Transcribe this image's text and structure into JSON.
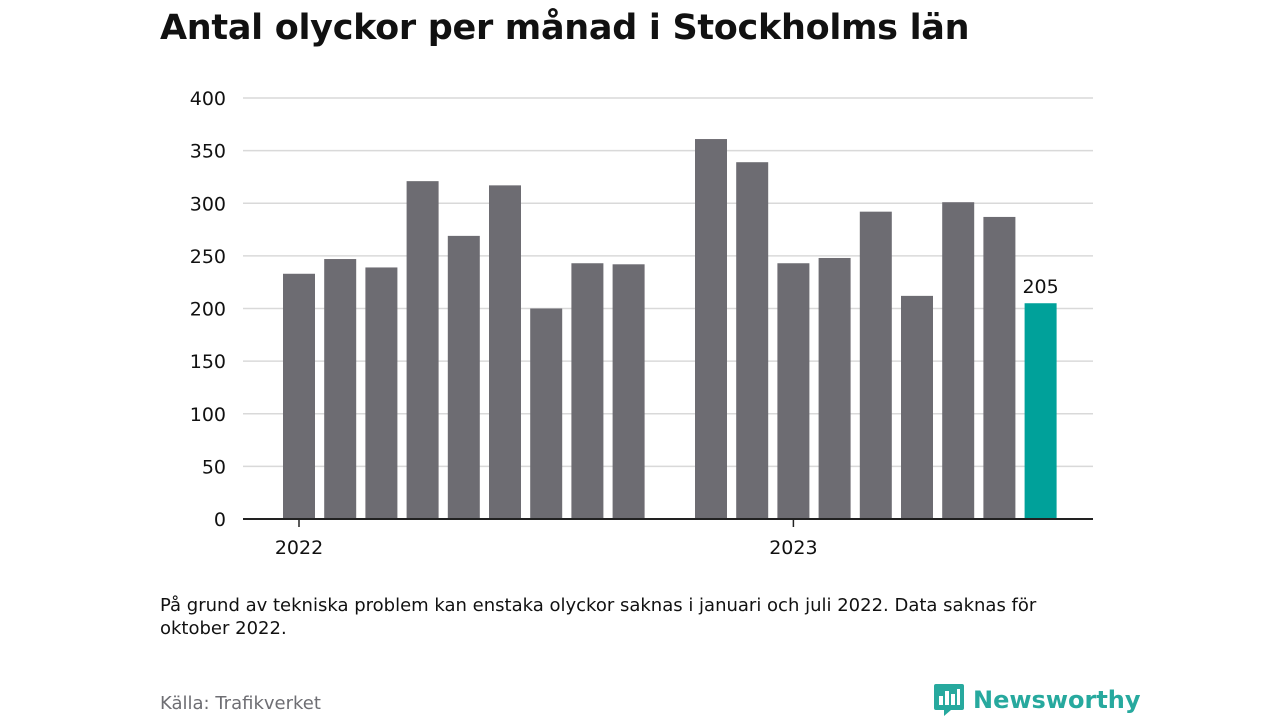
{
  "title": "Antal olyckor per månad i Stockholms län",
  "note": "På grund av tekniska problem kan enstaka olyckor saknas i januari och juli 2022. Data saknas för oktober 2022.",
  "source": "Källa: Trafikverket",
  "brand": {
    "name": "Newsworthy",
    "icon": "newsworthy-logo-icon",
    "color": "#27a99e"
  },
  "colors": {
    "bar": "#6d6c72",
    "highlight": "#00a19a",
    "grid": "#d9d9d9",
    "axis": "#222222"
  },
  "chart_data": {
    "type": "bar",
    "title": "Antal olyckor per månad i Stockholms län",
    "xlabel": "",
    "ylabel": "",
    "ylim": [
      0,
      400
    ],
    "yticks": [
      0,
      50,
      100,
      150,
      200,
      250,
      300,
      350,
      400
    ],
    "xticks": [
      {
        "label": "2022",
        "at_category": "2022-01"
      },
      {
        "label": "2023",
        "at_category": "2023-01"
      }
    ],
    "grid": true,
    "categories": [
      "2022-01",
      "2022-02",
      "2022-03",
      "2022-04",
      "2022-05",
      "2022-06",
      "2022-07",
      "2022-08",
      "2022-09",
      "2022-10",
      "2022-11",
      "2022-12",
      "2023-01",
      "2023-02",
      "2023-03",
      "2023-04",
      "2023-05",
      "2023-06",
      "2023-07",
      "2023-08",
      "2023-09"
    ],
    "values": [
      233,
      247,
      239,
      321,
      269,
      317,
      200,
      243,
      242,
      null,
      361,
      339,
      243,
      248,
      292,
      212,
      301,
      287,
      205,
      null,
      null
    ],
    "highlight_index": 18,
    "data_labels": [
      {
        "index": 18,
        "text": "205"
      }
    ]
  }
}
